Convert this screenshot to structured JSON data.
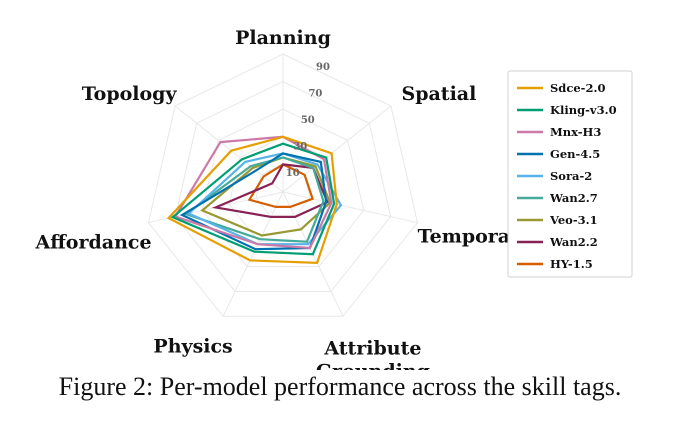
{
  "caption": "Figure 2: Per-model performance across the skill tags.",
  "chart_data": {
    "type": "radar",
    "axes": [
      "Planning",
      "Spatial",
      "Temporal",
      "Attribute\nGrounding",
      "Physics",
      "Affordance",
      "Topology"
    ],
    "rticks": [
      10,
      30,
      50,
      70,
      90
    ],
    "rlim": [
      0,
      100
    ],
    "legend_position": "right",
    "grid": true,
    "series": [
      {
        "name": "Sdce-2.0",
        "color": "#e69f00",
        "values": [
          40,
          45,
          40,
          57,
          55,
          85,
          48
        ]
      },
      {
        "name": "Kling-v3.0",
        "color": "#009e73",
        "values": [
          35,
          40,
          38,
          50,
          48,
          82,
          38
        ]
      },
      {
        "name": "Mnx-H3",
        "color": "#cc79a7",
        "values": [
          40,
          38,
          36,
          45,
          42,
          80,
          58
        ]
      },
      {
        "name": "Gen-4.5",
        "color": "#0072b2",
        "values": [
          28,
          35,
          32,
          45,
          46,
          75,
          25
        ]
      },
      {
        "name": "Sora-2",
        "color": "#56b4e9",
        "values": [
          28,
          32,
          43,
          42,
          42,
          70,
          35
        ]
      },
      {
        "name": "Wan2.7",
        "color": "#44aa99",
        "values": [
          25,
          28,
          30,
          40,
          38,
          72,
          30
        ]
      },
      {
        "name": "Veo-3.1",
        "color": "#999933",
        "values": [
          25,
          30,
          35,
          30,
          35,
          60,
          28
        ]
      },
      {
        "name": "Wan2.2",
        "color": "#882255",
        "values": [
          20,
          28,
          33,
          20,
          20,
          50,
          10
        ]
      },
      {
        "name": "HY-1.5",
        "color": "#d55e00",
        "values": [
          20,
          20,
          22,
          12,
          12,
          25,
          18
        ]
      }
    ]
  }
}
